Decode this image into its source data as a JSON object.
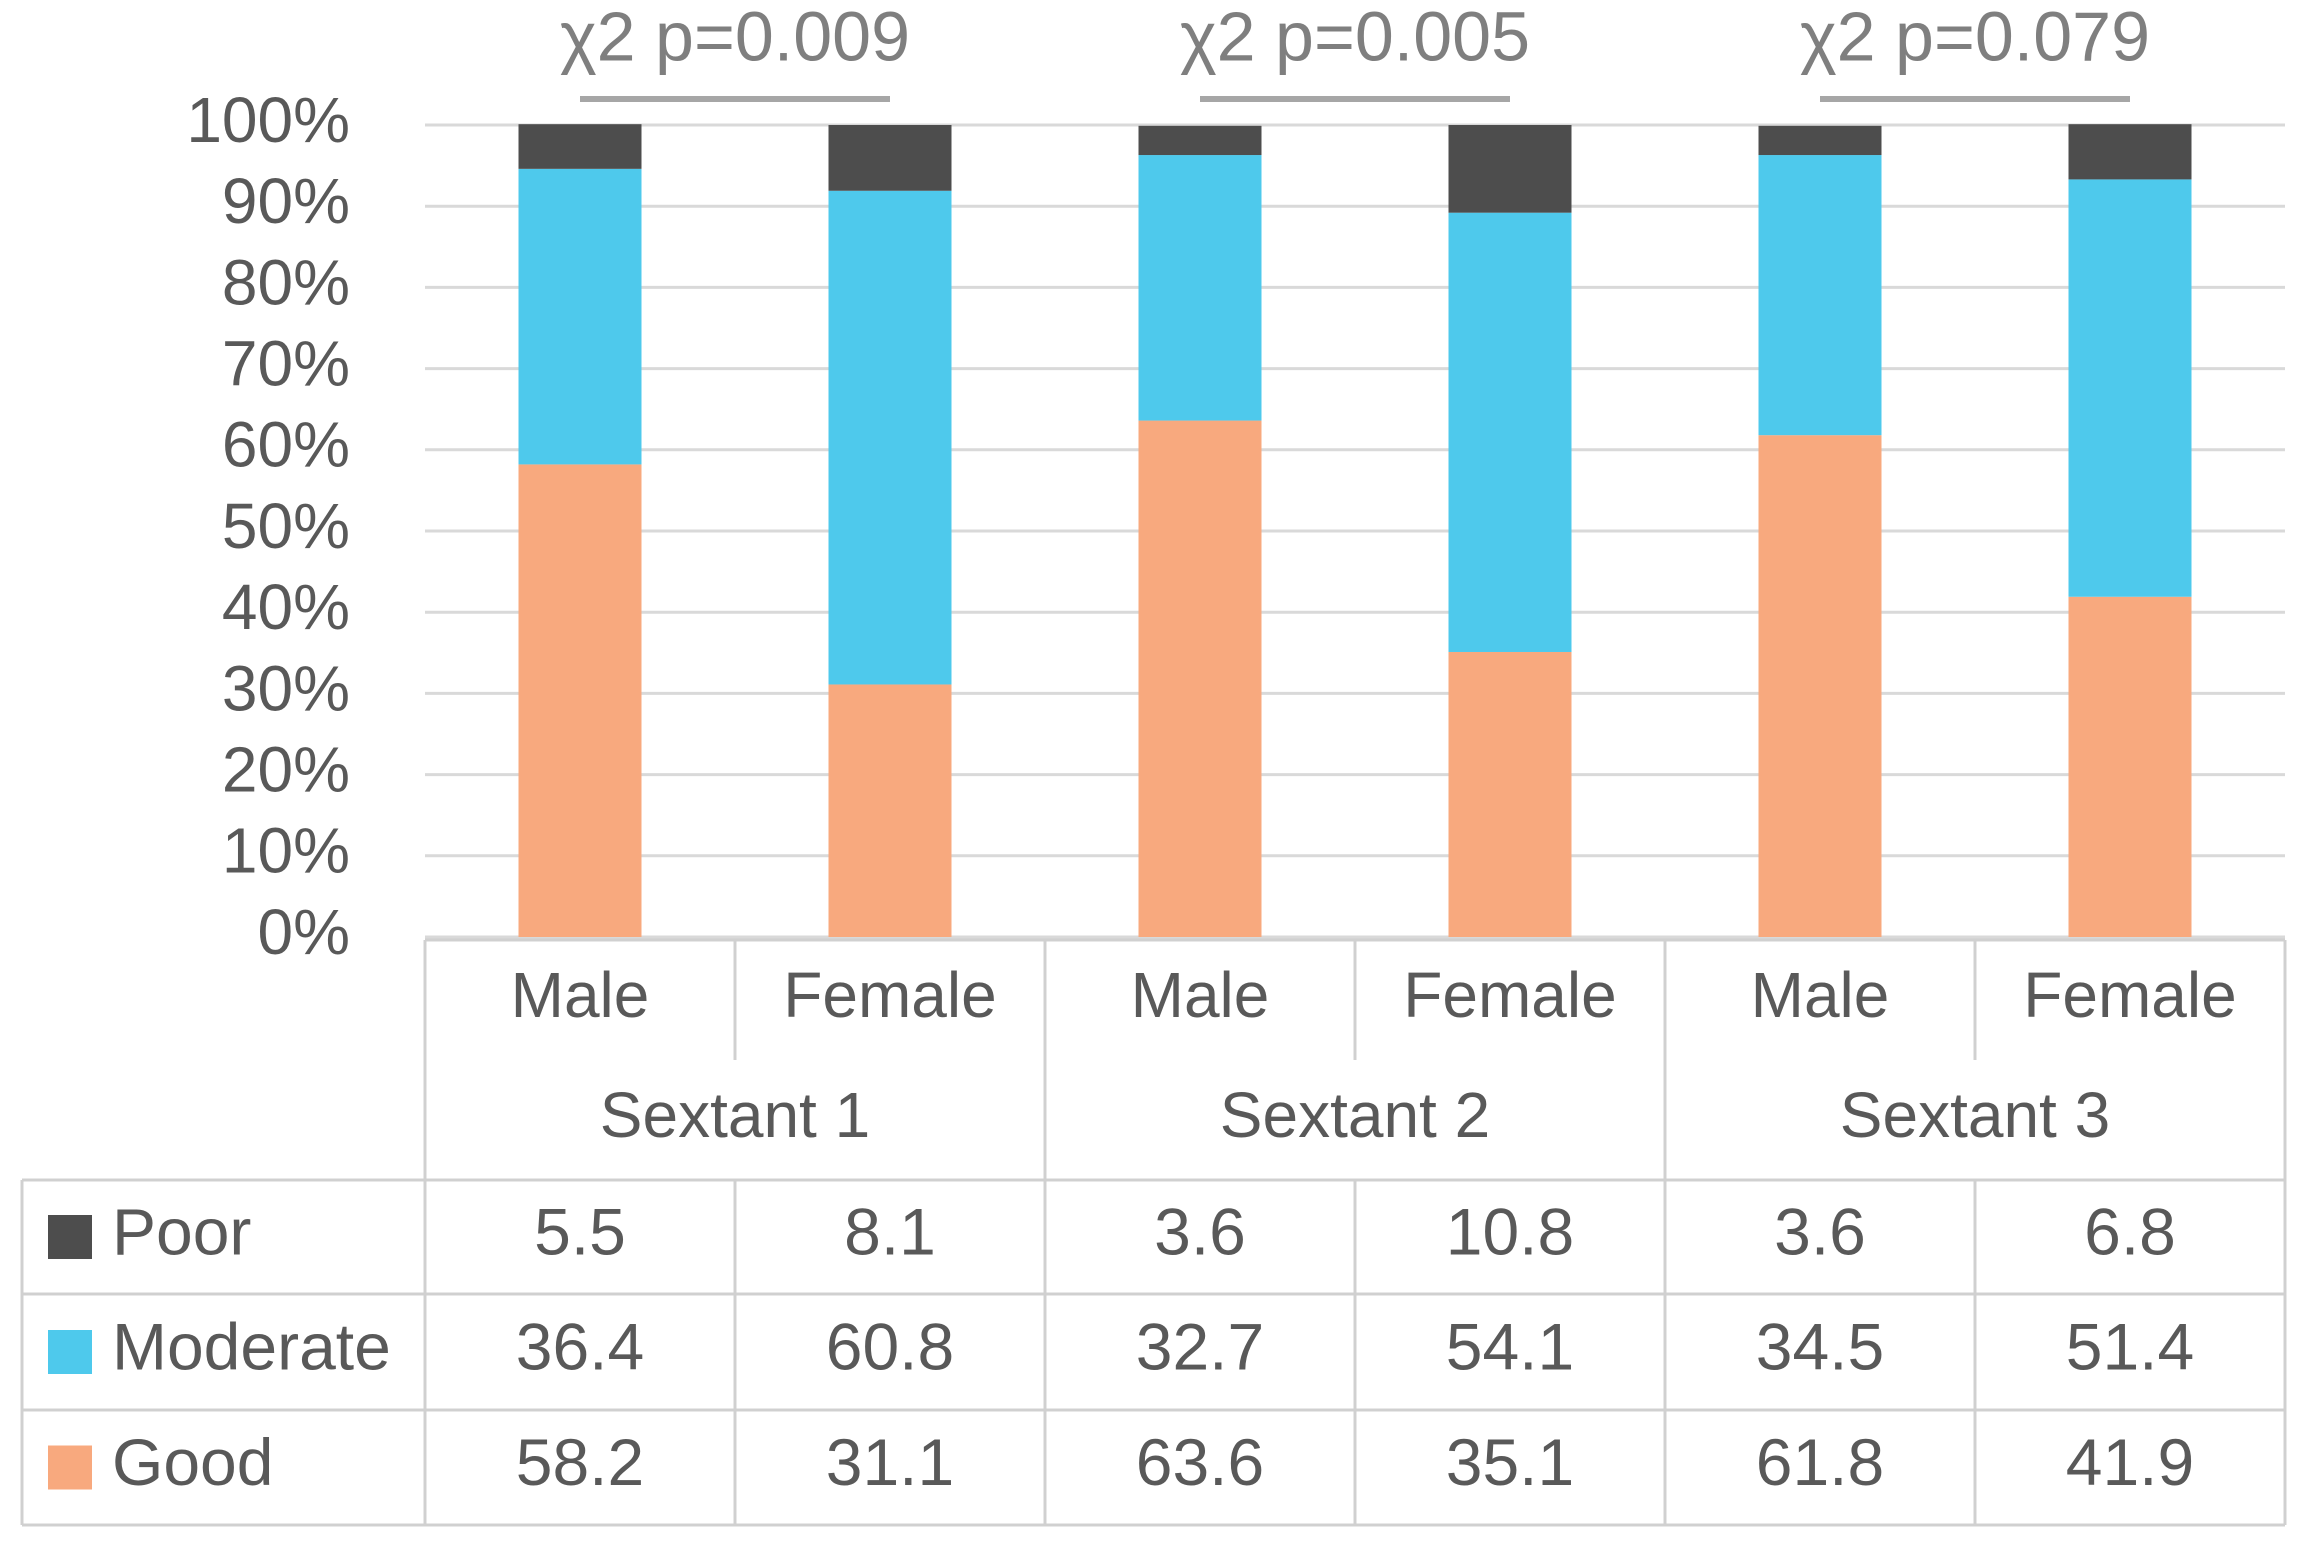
{
  "chart_data": {
    "type": "bar",
    "stacked": true,
    "title": "",
    "xlabel": "",
    "ylabel": "",
    "ylim": [
      0,
      100
    ],
    "y_ticks": [
      "0%",
      "10%",
      "20%",
      "30%",
      "40%",
      "50%",
      "60%",
      "70%",
      "80%",
      "90%",
      "100%"
    ],
    "grid": true,
    "groups": [
      {
        "label": "Sextant 1",
        "pvalue": "χ2 p=0.009"
      },
      {
        "label": "Sextant 2",
        "pvalue": "χ2 p=0.005"
      },
      {
        "label": "Sextant 3",
        "pvalue": "χ2 p=0.079"
      }
    ],
    "categories": [
      "Male",
      "Female",
      "Male",
      "Female",
      "Male",
      "Female"
    ],
    "series": [
      {
        "name": "Good",
        "color": "#f8a97e",
        "values": [
          "58.2",
          "31.1",
          "63.6",
          "35.1",
          "61.8",
          "41.9"
        ]
      },
      {
        "name": "Moderate",
        "color": "#4ec9ec",
        "values": [
          "36.4",
          "60.8",
          "32.7",
          "54.1",
          "34.5",
          "51.4"
        ]
      },
      {
        "name": "Poor",
        "color": "#4d4d4d",
        "values": [
          "5.5",
          "8.1",
          "3.6",
          "10.8",
          "3.6",
          "6.8"
        ]
      }
    ],
    "table_row_order": [
      "Poor",
      "Moderate",
      "Good"
    ],
    "legend": "data-table"
  }
}
